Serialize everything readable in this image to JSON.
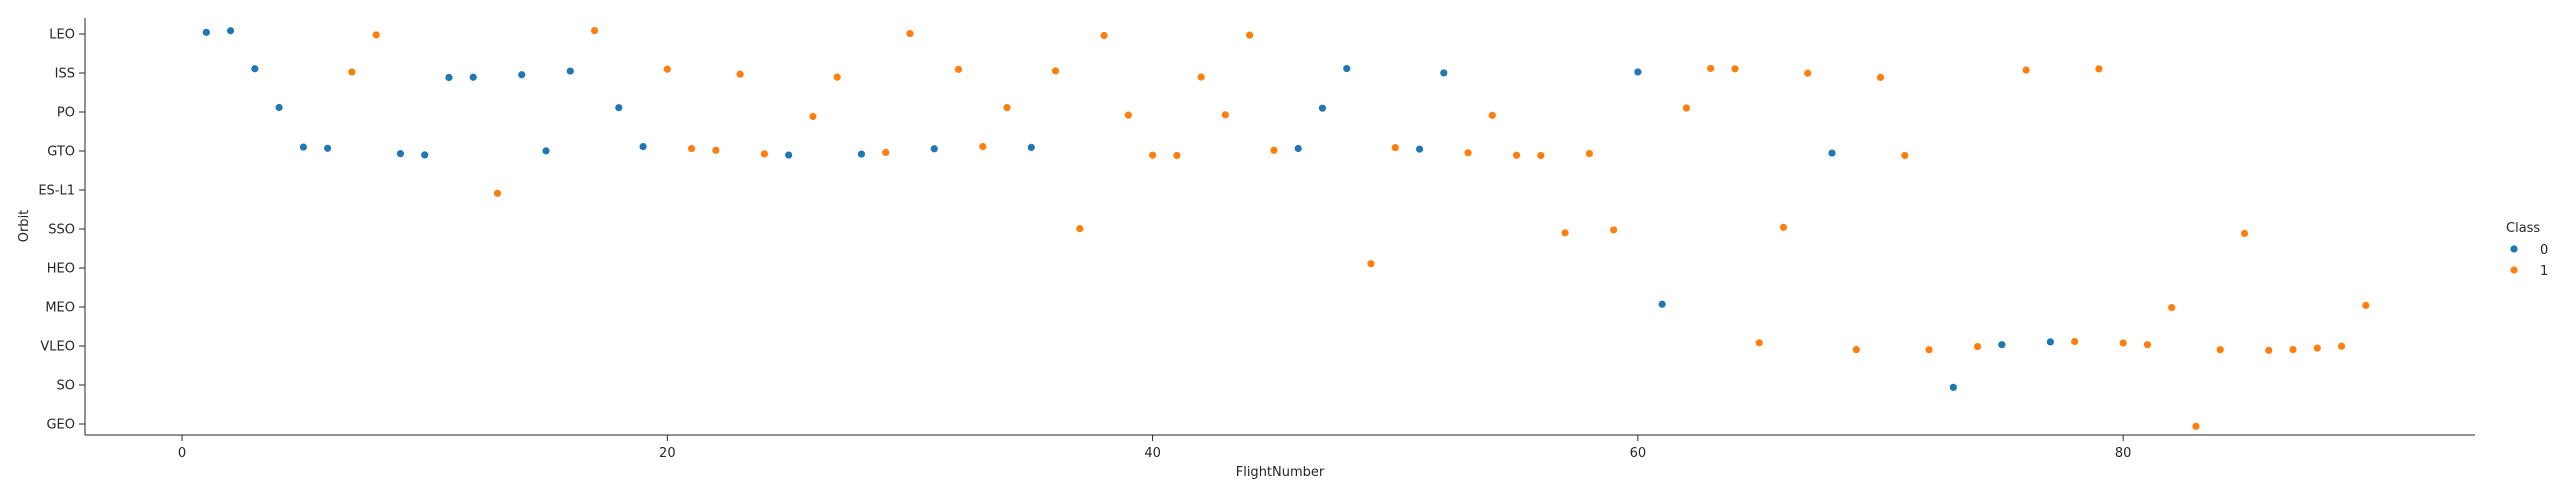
{
  "chart_data": {
    "type": "scatter",
    "xlabel": "FlightNumber",
    "ylabel": "Orbit",
    "xlim": [
      -4,
      94.5
    ],
    "x_ticks": [
      0,
      20,
      40,
      60,
      80
    ],
    "categories": [
      "LEO",
      "ISS",
      "PO",
      "GTO",
      "ES-L1",
      "SSO",
      "HEO",
      "MEO",
      "VLEO",
      "SO",
      "GEO"
    ],
    "grid": false,
    "legend": {
      "title": "Class",
      "placement": "right",
      "entries": [
        "0",
        "1"
      ]
    },
    "colors": {
      "0": "#1f77b4",
      "1": "#ff7f0e"
    },
    "series": [
      {
        "name": "0",
        "points": [
          [
            1,
            "LEO"
          ],
          [
            2,
            "LEO"
          ],
          [
            3,
            "ISS"
          ],
          [
            4,
            "PO"
          ],
          [
            5,
            "GTO"
          ],
          [
            6,
            "GTO"
          ],
          [
            9,
            "GTO"
          ],
          [
            10,
            "GTO"
          ],
          [
            11,
            "ISS"
          ],
          [
            12,
            "ISS"
          ],
          [
            14,
            "ISS"
          ],
          [
            15,
            "GTO"
          ],
          [
            16,
            "ISS"
          ],
          [
            18,
            "PO"
          ],
          [
            19,
            "GTO"
          ],
          [
            25,
            "GTO"
          ],
          [
            28,
            "GTO"
          ],
          [
            31,
            "GTO"
          ],
          [
            35,
            "GTO"
          ],
          [
            46,
            "GTO"
          ],
          [
            47,
            "PO"
          ],
          [
            48,
            "ISS"
          ],
          [
            51,
            "GTO"
          ],
          [
            52,
            "ISS"
          ],
          [
            60,
            "ISS"
          ],
          [
            61,
            "MEO"
          ],
          [
            68,
            "GTO"
          ],
          [
            73,
            "SO"
          ],
          [
            75,
            "VLEO"
          ],
          [
            77,
            "VLEO"
          ]
        ]
      },
      {
        "name": "1",
        "points": [
          [
            7,
            "ISS"
          ],
          [
            8,
            "LEO"
          ],
          [
            13,
            "ES-L1"
          ],
          [
            17,
            "LEO"
          ],
          [
            20,
            "ISS"
          ],
          [
            21,
            "GTO"
          ],
          [
            22,
            "GTO"
          ],
          [
            23,
            "ISS"
          ],
          [
            24,
            "GTO"
          ],
          [
            26,
            "PO"
          ],
          [
            27,
            "ISS"
          ],
          [
            29,
            "GTO"
          ],
          [
            30,
            "LEO"
          ],
          [
            32,
            "ISS"
          ],
          [
            33,
            "GTO"
          ],
          [
            34,
            "PO"
          ],
          [
            36,
            "ISS"
          ],
          [
            37,
            "SSO"
          ],
          [
            38,
            "LEO"
          ],
          [
            39,
            "PO"
          ],
          [
            40,
            "GTO"
          ],
          [
            41,
            "GTO"
          ],
          [
            42,
            "ISS"
          ],
          [
            43,
            "PO"
          ],
          [
            44,
            "LEO"
          ],
          [
            45,
            "GTO"
          ],
          [
            49,
            "HEO"
          ],
          [
            50,
            "GTO"
          ],
          [
            53,
            "GTO"
          ],
          [
            54,
            "PO"
          ],
          [
            55,
            "GTO"
          ],
          [
            56,
            "GTO"
          ],
          [
            57,
            "SSO"
          ],
          [
            58,
            "GTO"
          ],
          [
            59,
            "SSO"
          ],
          [
            62,
            "PO"
          ],
          [
            63,
            "ISS"
          ],
          [
            64,
            "ISS"
          ],
          [
            65,
            "VLEO"
          ],
          [
            66,
            "SSO"
          ],
          [
            67,
            "ISS"
          ],
          [
            69,
            "VLEO"
          ],
          [
            70,
            "ISS"
          ],
          [
            71,
            "GTO"
          ],
          [
            72,
            "VLEO"
          ],
          [
            74,
            "VLEO"
          ],
          [
            76,
            "ISS"
          ],
          [
            78,
            "VLEO"
          ],
          [
            79,
            "ISS"
          ],
          [
            80,
            "VLEO"
          ],
          [
            81,
            "VLEO"
          ],
          [
            82,
            "MEO"
          ],
          [
            83,
            "GEO"
          ],
          [
            84,
            "VLEO"
          ],
          [
            85,
            "SSO"
          ],
          [
            86,
            "VLEO"
          ],
          [
            87,
            "VLEO"
          ],
          [
            88,
            "VLEO"
          ],
          [
            89,
            "VLEO"
          ],
          [
            90,
            "MEO"
          ]
        ]
      }
    ]
  }
}
